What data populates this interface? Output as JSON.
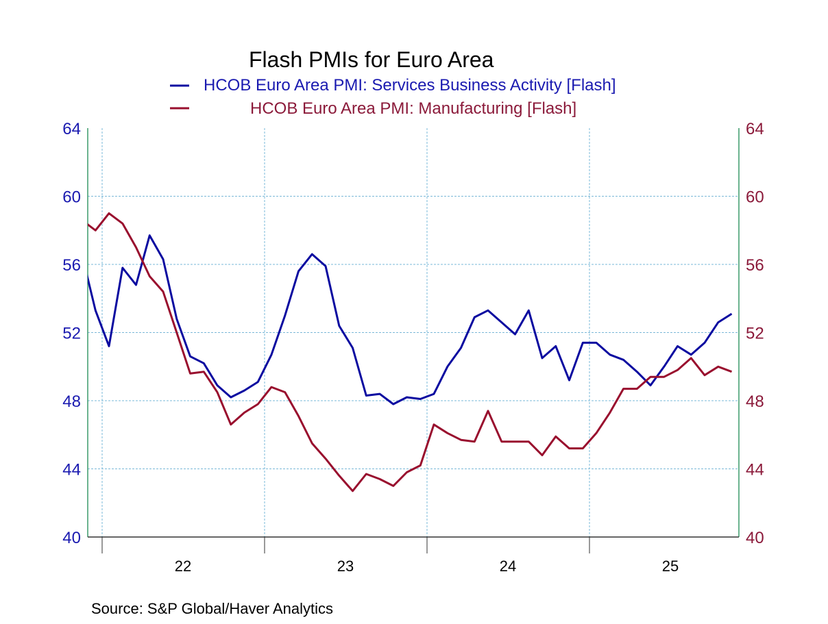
{
  "chart_data": {
    "type": "line",
    "title": "Flash PMIs for Euro Area",
    "source": "Source:  S&P Global/Haver Analytics",
    "x": [
      "2021-11",
      "2021-12",
      "2022-01",
      "2022-02",
      "2022-03",
      "2022-04",
      "2022-05",
      "2022-06",
      "2022-07",
      "2022-08",
      "2022-09",
      "2022-10",
      "2022-11",
      "2022-12",
      "2023-01",
      "2023-02",
      "2023-03",
      "2023-04",
      "2023-05",
      "2023-06",
      "2023-07",
      "2023-08",
      "2023-09",
      "2023-10",
      "2023-11",
      "2023-12",
      "2024-01",
      "2024-02",
      "2024-03",
      "2024-04",
      "2024-05",
      "2024-06",
      "2024-07",
      "2024-08",
      "2024-09",
      "2024-10",
      "2024-11",
      "2024-12",
      "2025-01",
      "2025-02",
      "2025-03",
      "2025-04",
      "2025-05",
      "2025-06",
      "2025-07",
      "2025-08",
      "2025-09",
      "2025-10",
      "2025-11"
    ],
    "xlim": [
      "2021-12",
      "2025-11"
    ],
    "x_tick_labels": [
      "22",
      "23",
      "24",
      "25"
    ],
    "ylim_left": [
      40,
      64
    ],
    "ylim_right": [
      40,
      64
    ],
    "y_ticks": [
      40,
      44,
      48,
      52,
      56,
      60,
      64
    ],
    "grid": true,
    "legend_placement": "top",
    "series": [
      {
        "name": "HCOB Euro Area PMI: Services Business Activity [Flash]",
        "axis": "left",
        "color": "#0a0aa0",
        "values": [
          56.6,
          53.3,
          51.2,
          55.8,
          54.8,
          57.7,
          56.3,
          52.8,
          50.6,
          50.2,
          48.9,
          48.2,
          48.6,
          49.1,
          50.7,
          53.0,
          55.6,
          56.6,
          55.9,
          52.4,
          51.1,
          48.3,
          48.4,
          47.8,
          48.2,
          48.1,
          48.4,
          50.0,
          51.1,
          52.9,
          53.3,
          52.6,
          51.9,
          53.3,
          50.5,
          51.2,
          49.2,
          51.4,
          51.4,
          50.7,
          50.4,
          49.7,
          48.9,
          50.0,
          51.2,
          50.7,
          51.4,
          52.6,
          53.1
        ]
      },
      {
        "name": "HCOB Euro Area PMI: Manufacturing [Flash]",
        "axis": "right",
        "color": "#990f2e",
        "values": [
          58.6,
          58.0,
          59.0,
          58.4,
          57.0,
          55.3,
          54.4,
          52.0,
          49.6,
          49.7,
          48.5,
          46.6,
          47.3,
          47.8,
          48.8,
          48.5,
          47.1,
          45.5,
          44.6,
          43.6,
          42.7,
          43.7,
          43.4,
          43.0,
          43.8,
          44.2,
          46.6,
          46.1,
          45.7,
          45.6,
          47.4,
          45.6,
          45.6,
          45.6,
          44.8,
          45.9,
          45.2,
          45.2,
          46.1,
          47.3,
          48.7,
          48.7,
          49.4,
          49.4,
          49.8,
          50.5,
          49.5,
          50.0,
          49.7
        ]
      }
    ],
    "colors": {
      "left_axis": "#1a1ab0",
      "right_axis": "#8b1a3a",
      "axis_line": "#3a9a6a",
      "grid": "#7ab8d8"
    }
  }
}
